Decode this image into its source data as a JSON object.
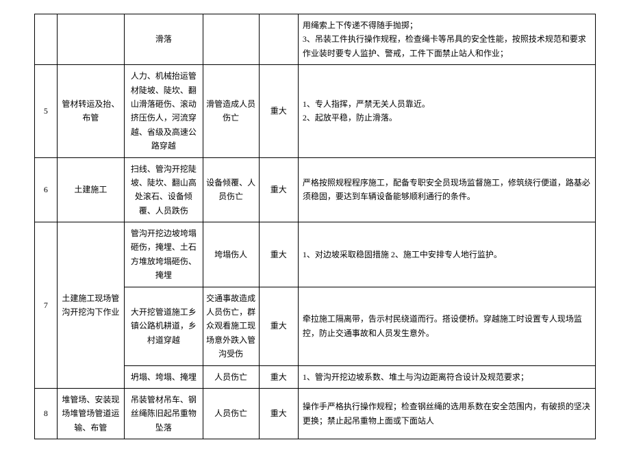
{
  "table": {
    "border_color": "#000000",
    "background_color": "#ffffff",
    "text_color": "#000000",
    "font_size": 12,
    "column_widths_pct": [
      4,
      12,
      14,
      10,
      7,
      53
    ],
    "rows": [
      {
        "num": "",
        "item": "",
        "hazard": "滑落",
        "consequence": "",
        "level": "",
        "measure": "用绳索上下传递不得随手抛掷；\n3、吊装工件执行操作规程，检查绳卡等吊具的安全性能，按照技术规范和要求作业装时要专人监护、警戒，工件下面禁止站人和作业；"
      },
      {
        "num": "5",
        "item": "管材转运及抬、布管",
        "hazard": "人力、机械抬运管材陡坡、陡坎、翻山滑落砸伤、滚动挤压伤人，河流穿越、省级及高速公路穿越",
        "consequence": "滑管造成人员伤亡",
        "level": "重大",
        "measure": "1、专人指挥，严禁无关人员靠近。\n2、起放平稳，防止滑落。"
      },
      {
        "num": "6",
        "item": "土建施工",
        "hazard": "扫线、管沟开挖陡坡、陡坎、翻山高处滚石、设备倾覆、人员跌伤",
        "consequence": "设备倾覆、人员伤亡",
        "level": "重大",
        "measure": "严格按照规程程序施工，配备专职安全员现场监督施工，修筑绕行便道，路基必须稳固，要达到车辆设备能够顺利通行的条件。"
      },
      {
        "num": "7",
        "item": "土建施工现场管沟开挖沟下作业",
        "sub": [
          {
            "hazard": "管沟开挖边坡垮塌砸伤，掩埋、土石方堆放垮塌砸伤、掩埋",
            "consequence": "垮塌伤人",
            "level": "重大",
            "measure": "1、对边坡采取稳固措施 2、施工中安排专人地行监护。"
          },
          {
            "hazard": "大开挖管道施工乡镇公路机耕道，乡村道穿越",
            "consequence": "交通事故造成人员伤亡，群众观看施工现场意外跌入管沟受伤",
            "level": "重大",
            "measure": "牵拉施工隔离带，告示村民绕道而行。搭设便桥。穿越施工时设置专人现场监控，防止交通事故和人员发生意外。"
          },
          {
            "hazard": "坍塌、垮塌、掩埋",
            "consequence": "人员伤亡",
            "level": "重大",
            "measure": "1、管沟开挖边坡系数、堆土与沟边距离符合设计及规范要求；"
          }
        ]
      },
      {
        "num": "8",
        "item": "堆管场、安装现场堆管场管道运输、布管",
        "hazard": "吊装管材吊车、钢丝绳陈旧起吊重物坠落",
        "consequence": "人员伤亡",
        "level": "重大",
        "measure": "操作手严格执行操作规程；检查钢丝绳的选用系数在安全范围内，有破损的坚决更换；禁止起吊重物上面或下面站人"
      }
    ]
  }
}
